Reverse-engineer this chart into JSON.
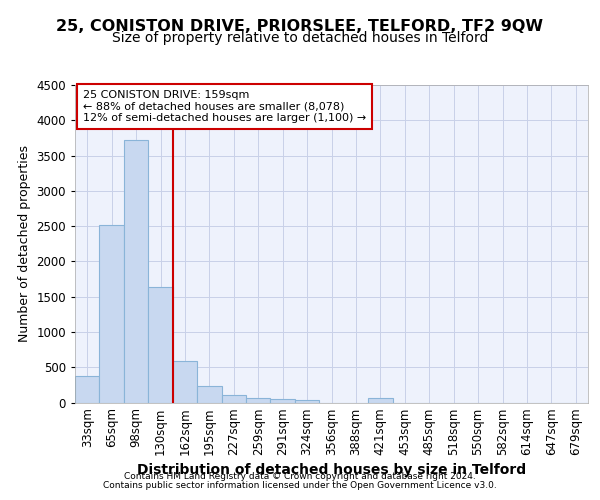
{
  "title1": "25, CONISTON DRIVE, PRIORSLEE, TELFORD, TF2 9QW",
  "title2": "Size of property relative to detached houses in Telford",
  "xlabel": "Distribution of detached houses by size in Telford",
  "ylabel": "Number of detached properties",
  "footer1": "Contains HM Land Registry data © Crown copyright and database right 2024.",
  "footer2": "Contains public sector information licensed under the Open Government Licence v3.0.",
  "categories": [
    "33sqm",
    "65sqm",
    "98sqm",
    "130sqm",
    "162sqm",
    "195sqm",
    "227sqm",
    "259sqm",
    "291sqm",
    "324sqm",
    "356sqm",
    "388sqm",
    "421sqm",
    "453sqm",
    "485sqm",
    "518sqm",
    "550sqm",
    "582sqm",
    "614sqm",
    "647sqm",
    "679sqm"
  ],
  "values": [
    370,
    2510,
    3720,
    1630,
    590,
    230,
    110,
    70,
    55,
    35,
    0,
    0,
    65,
    0,
    0,
    0,
    0,
    0,
    0,
    0,
    0
  ],
  "bar_color": "#c8d8f0",
  "bar_edge_color": "#8ab4d8",
  "red_line_x": 3.5,
  "highlight_label": "25 CONISTON DRIVE: 159sqm",
  "annotation_line1": "← 88% of detached houses are smaller (8,078)",
  "annotation_line2": "12% of semi-detached houses are larger (1,100) →",
  "annotation_color": "#cc0000",
  "ylim": [
    0,
    4500
  ],
  "yticks": [
    0,
    500,
    1000,
    1500,
    2000,
    2500,
    3000,
    3500,
    4000,
    4500
  ],
  "bg_color": "#eef2fc",
  "grid_color": "#c8d0e8",
  "title1_fontsize": 11.5,
  "title2_fontsize": 10,
  "xlabel_fontsize": 10,
  "ylabel_fontsize": 9,
  "tick_fontsize": 8.5
}
